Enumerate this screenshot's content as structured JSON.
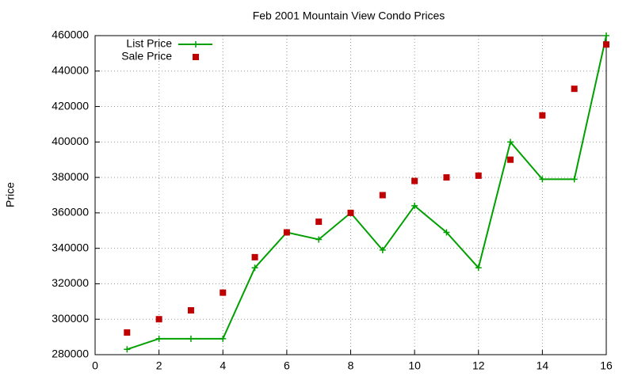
{
  "chart_data": {
    "type": "line",
    "title": "Feb 2001 Mountain View Condo Prices",
    "y_label": "Price",
    "x": [
      1,
      2,
      3,
      4,
      5,
      6,
      7,
      8,
      9,
      10,
      11,
      12,
      13,
      14,
      15,
      16
    ],
    "series": [
      {
        "name": "List Price",
        "color": "#00a000",
        "style": "linespoints",
        "values": [
          283000,
          289000,
          289000,
          289000,
          329000,
          349000,
          345000,
          360000,
          339000,
          364000,
          349000,
          329000,
          400000,
          379000,
          379000,
          460000
        ]
      },
      {
        "name": "Sale Price",
        "color": "#c00000",
        "style": "points",
        "values": [
          292500,
          300000,
          305000,
          315000,
          335000,
          349000,
          355000,
          360000,
          370000,
          378000,
          380000,
          381000,
          390000,
          415000,
          430000,
          455000
        ]
      }
    ],
    "xlim": [
      0,
      16
    ],
    "xticks": [
      0,
      2,
      4,
      6,
      8,
      10,
      12,
      14,
      16
    ],
    "ylim": [
      280000,
      460000
    ],
    "yticks": [
      280000,
      300000,
      320000,
      340000,
      360000,
      380000,
      400000,
      420000,
      440000,
      460000
    ],
    "grid": true,
    "legend": "top-left"
  }
}
